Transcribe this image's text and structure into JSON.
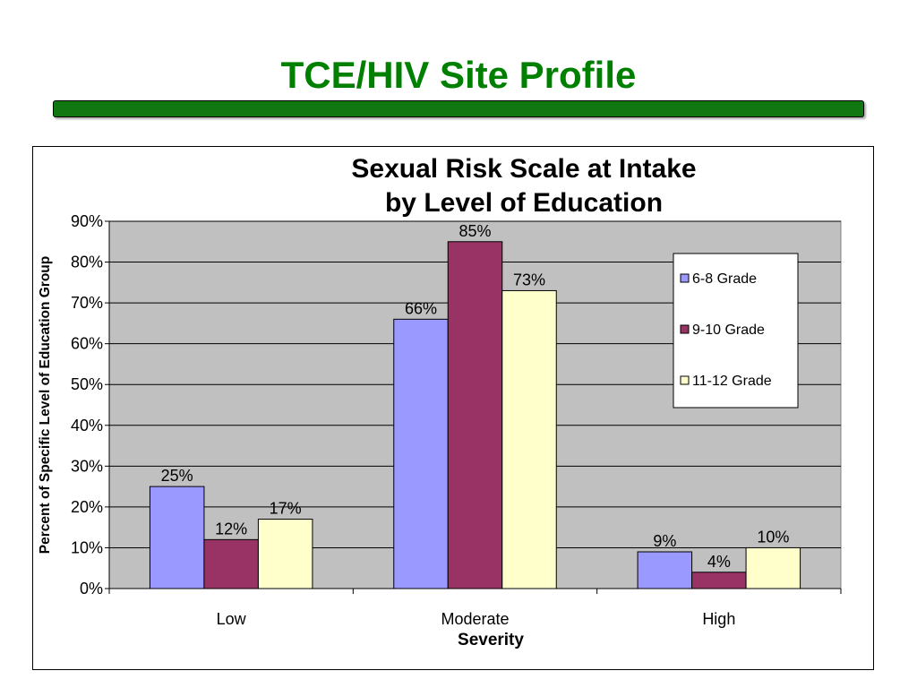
{
  "slide": {
    "title": "TCE/HIV Site Profile"
  },
  "colors": {
    "title_green": "#008000",
    "bar_green": "#117711",
    "plot_bg": "#C0C0C0"
  },
  "chart_data": {
    "type": "bar",
    "title_lines": [
      "Sexual Risk Scale at Intake",
      "by Level of Education"
    ],
    "xlabel": "Severity",
    "ylabel": "Percent of Specific Level of Education Group",
    "categories": [
      "Low",
      "Moderate",
      "High"
    ],
    "series": [
      {
        "name": "6-8 Grade",
        "values": [
          25,
          66,
          9
        ],
        "labels": [
          "25%",
          "66%",
          "9%"
        ],
        "color": "#9999FF"
      },
      {
        "name": "9-10 Grade",
        "values": [
          12,
          85,
          4
        ],
        "labels": [
          "12%",
          "85%",
          "4%"
        ],
        "color": "#993366"
      },
      {
        "name": "11-12 Grade",
        "values": [
          17,
          73,
          10
        ],
        "labels": [
          "17%",
          "73%",
          "10%"
        ],
        "color": "#FFFFCC"
      }
    ],
    "ylim": [
      0,
      90
    ],
    "yticks": [
      0,
      10,
      20,
      30,
      40,
      50,
      60,
      70,
      80,
      90
    ],
    "ytick_labels": [
      "0%",
      "10%",
      "20%",
      "30%",
      "40%",
      "50%",
      "60%",
      "70%",
      "80%",
      "90%"
    ],
    "grid": true,
    "legend_position": "right"
  }
}
